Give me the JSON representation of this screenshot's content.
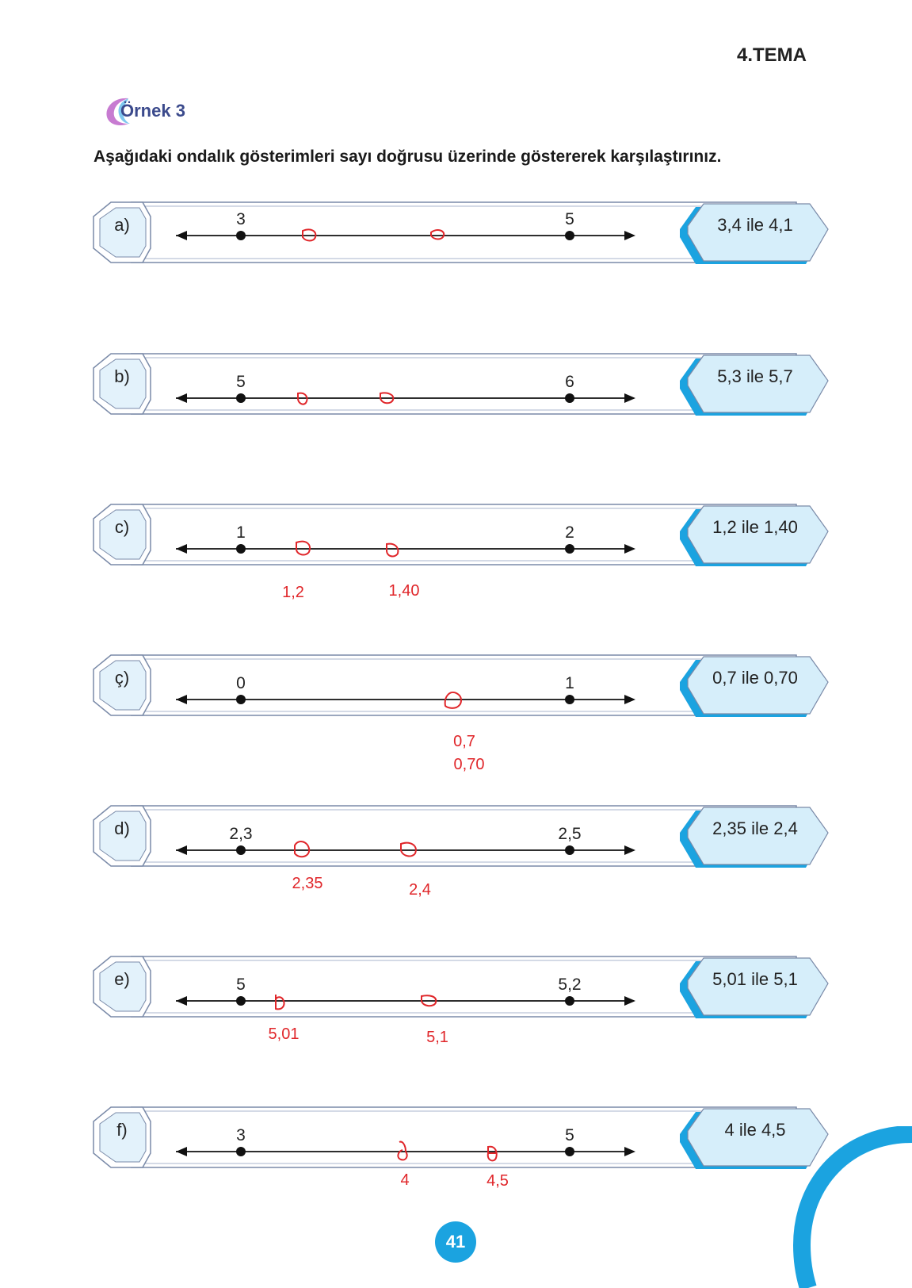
{
  "header": {
    "tema": "4.TEMA"
  },
  "example": {
    "label": "Örnek 3"
  },
  "instruction": "Aşağıdaki ondalık gösterimleri sayı doğrusu üzerinde göstererek karşılaştırınız.",
  "colors": {
    "frame_blue": "#1ba3e0",
    "frame_light": "#d6eefa",
    "handwriting_red": "#e0262a",
    "accent_blue": "#3b4a8c"
  },
  "exercises": [
    {
      "letter": "a)",
      "pair": "3,4 ile 4,1",
      "left_tick": "3",
      "right_tick": "5",
      "handwritten_labels": []
    },
    {
      "letter": "b)",
      "pair": "5,3 ile 5,7",
      "left_tick": "5",
      "right_tick": "6",
      "handwritten_labels": []
    },
    {
      "letter": "c)",
      "pair": "1,2 ile 1,40",
      "left_tick": "1",
      "right_tick": "2",
      "handwritten_labels": [
        "1,2",
        "1,40"
      ]
    },
    {
      "letter": "ç)",
      "pair": "0,7 ile 0,70",
      "left_tick": "0",
      "right_tick": "1",
      "handwritten_labels": [
        "0,7",
        "0,70"
      ]
    },
    {
      "letter": "d)",
      "pair": "2,35 ile 2,4",
      "left_tick": "2,3",
      "right_tick": "2,5",
      "handwritten_labels": [
        "2,35",
        "2,4"
      ]
    },
    {
      "letter": "e)",
      "pair": "5,01 ile 5,1",
      "left_tick": "5",
      "right_tick": "5,2",
      "handwritten_labels": [
        "5,01",
        "5,1"
      ]
    },
    {
      "letter": "f)",
      "pair": "4 ile 4,5",
      "left_tick": "3",
      "right_tick": "5",
      "handwritten_labels": [
        "4",
        "4,5"
      ]
    }
  ],
  "page_number": "41"
}
